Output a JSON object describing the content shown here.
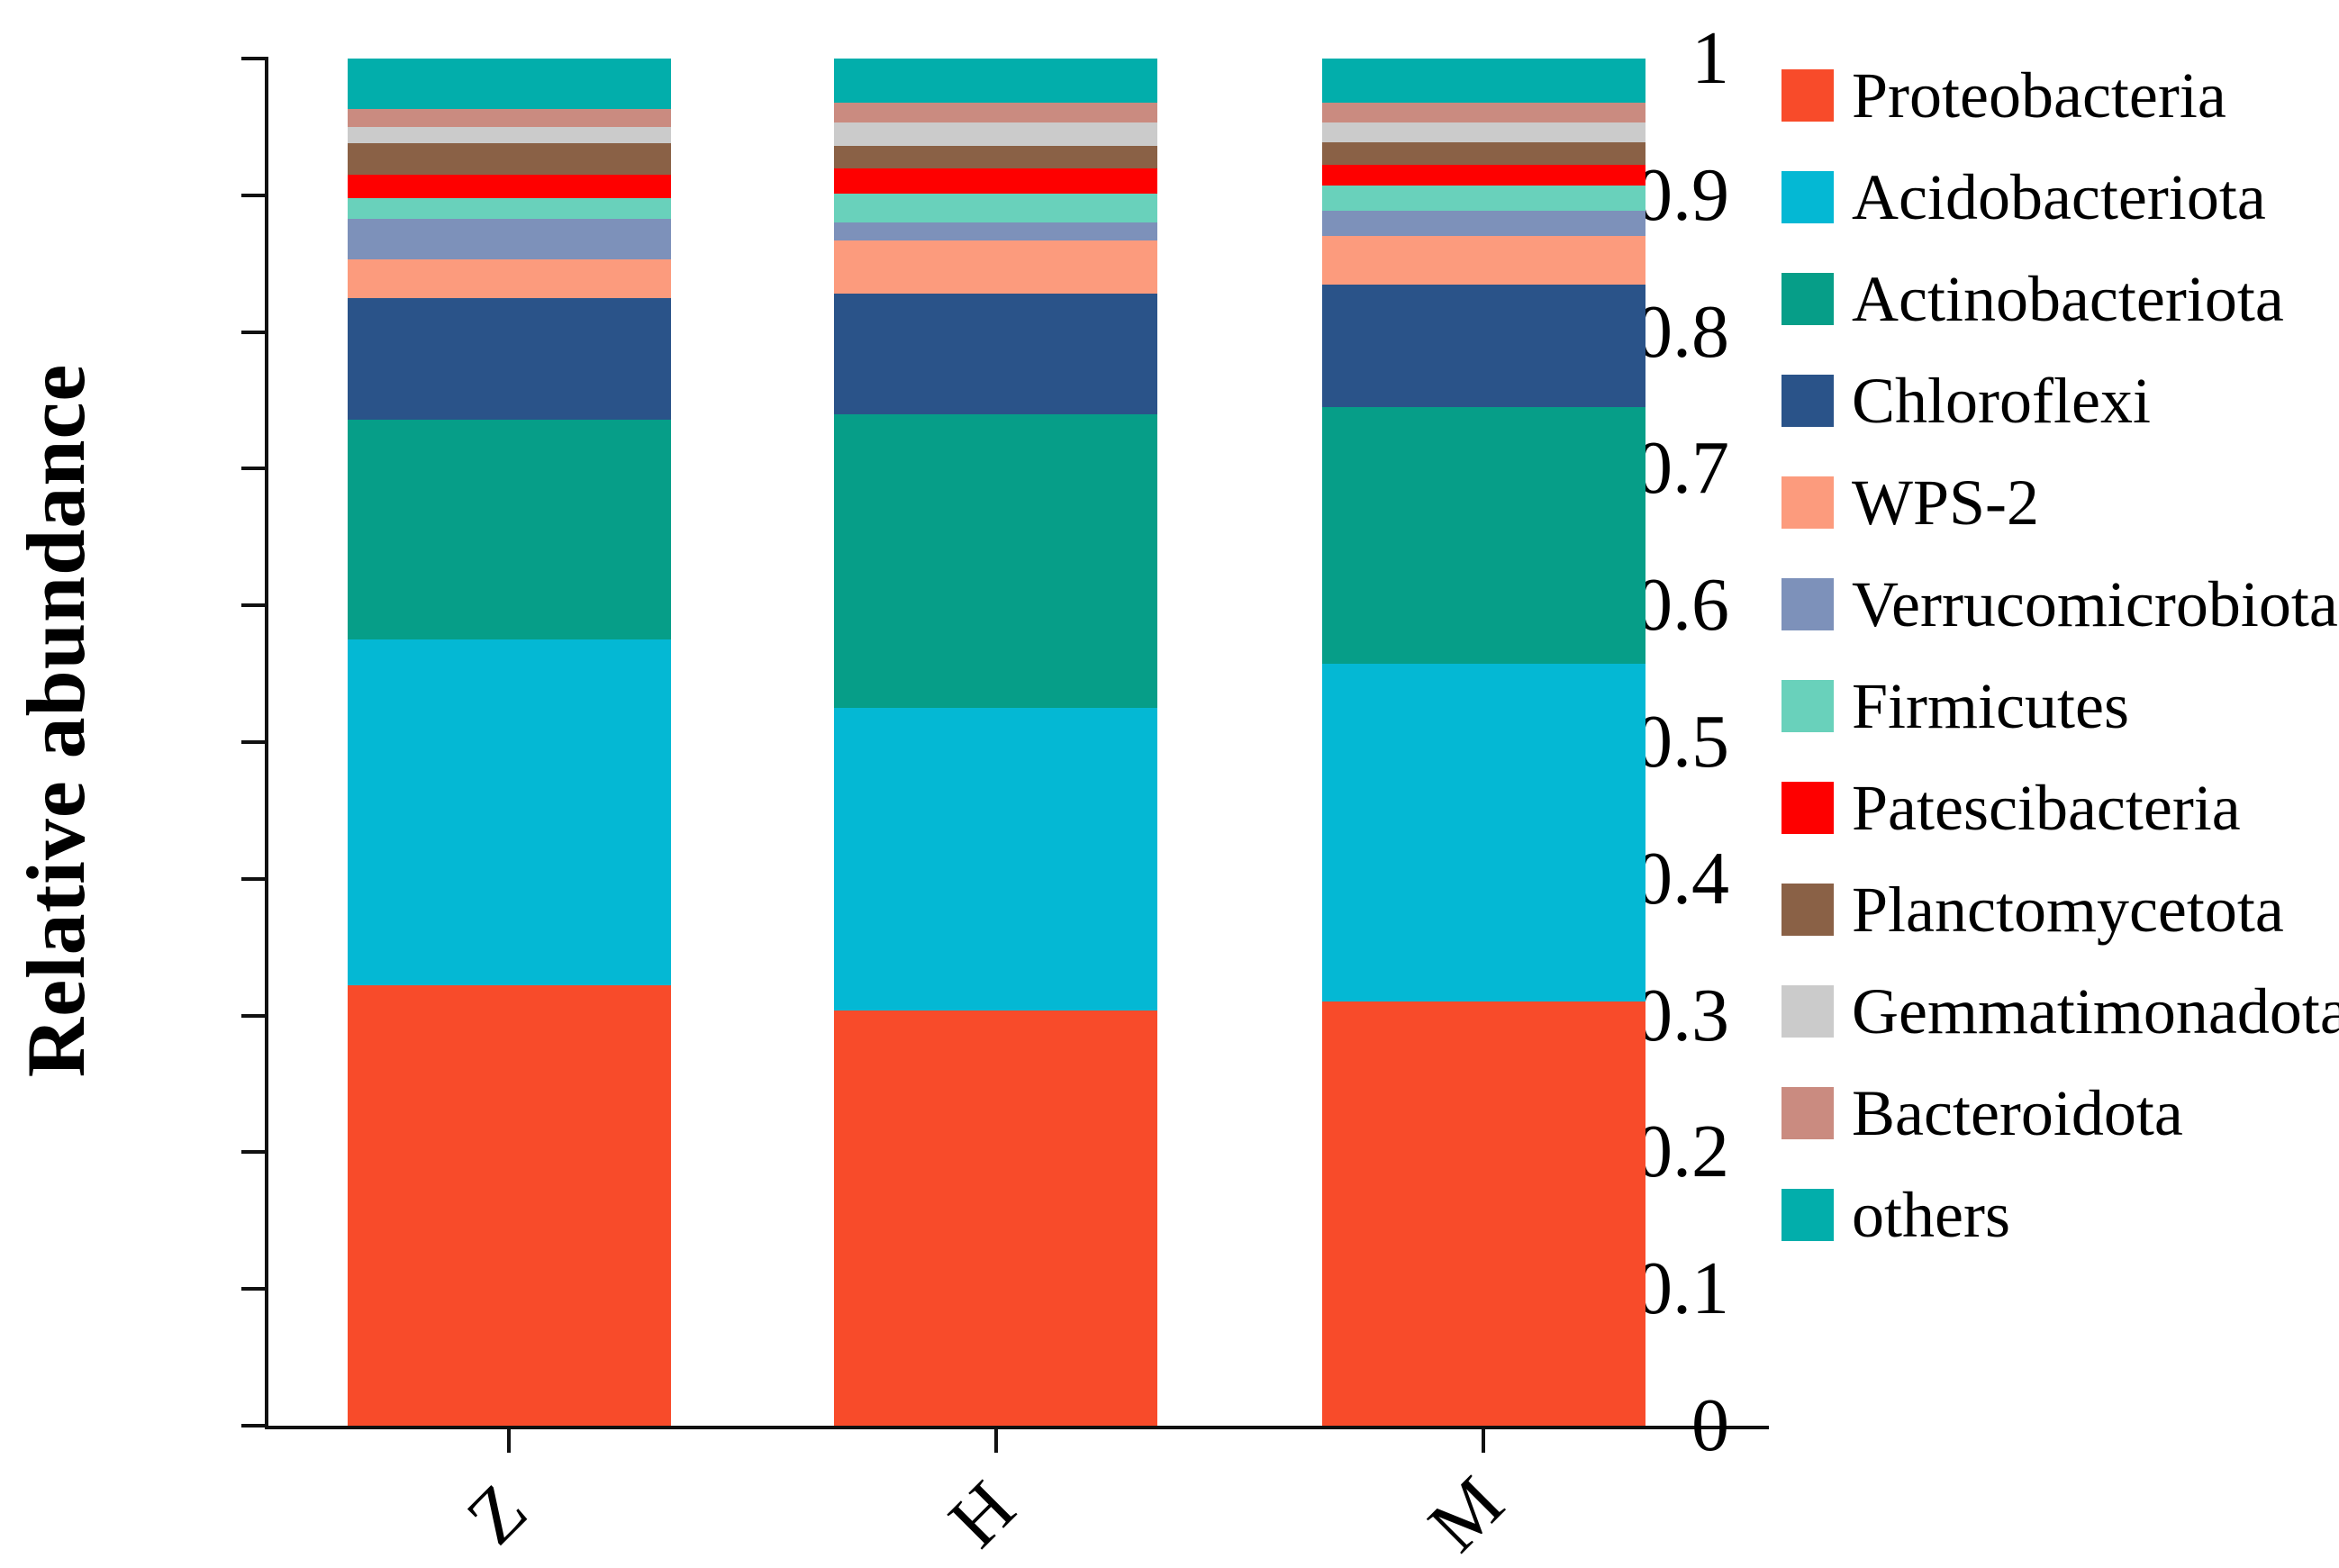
{
  "figure": {
    "background": "#FFFFFF",
    "axis_color": "#111111",
    "ylabel": "Relative abundance"
  },
  "chart_data": {
    "type": "bar",
    "stacked": true,
    "title": "",
    "xlabel": "",
    "ylabel": "Relative abundance",
    "categories": [
      "Z",
      "H",
      "M"
    ],
    "ylim": [
      0,
      1
    ],
    "yticks": [
      "1",
      "0.9",
      "0.8",
      "0.7",
      "0.6",
      "0.5",
      "0.4",
      "0.3",
      "0.2",
      "0.1",
      "0"
    ],
    "grid": false,
    "legend_position": "right",
    "bar_order_note": "series listed bottom-to-top of each stacked bar; legend reads top-to-bottom in same order",
    "series": [
      {
        "name": "Proteobacteria",
        "color": "#F84B2A",
        "values": [
          0.322,
          0.304,
          0.31
        ]
      },
      {
        "name": "Acidobacteriota",
        "color": "#04B8D4",
        "values": [
          0.253,
          0.221,
          0.247
        ]
      },
      {
        "name": "Actinobacteriota",
        "color": "#069E88",
        "values": [
          0.161,
          0.215,
          0.188
        ]
      },
      {
        "name": "Chloroflexi",
        "color": "#2A5389",
        "values": [
          0.089,
          0.088,
          0.09
        ]
      },
      {
        "name": "WPS-2",
        "color": "#FC9B7D",
        "values": [
          0.028,
          0.039,
          0.035
        ]
      },
      {
        "name": "Verrucomicrobiota",
        "color": "#7D91BA",
        "values": [
          0.03,
          0.013,
          0.019
        ]
      },
      {
        "name": "Firmicutes",
        "color": "#69D1BB",
        "values": [
          0.015,
          0.021,
          0.018
        ]
      },
      {
        "name": "Patescibacteria",
        "color": "#FE0000",
        "values": [
          0.017,
          0.019,
          0.015
        ]
      },
      {
        "name": "Planctomycetota",
        "color": "#8A6146",
        "values": [
          0.023,
          0.016,
          0.017
        ]
      },
      {
        "name": "Gemmatimonadota",
        "color": "#CBCBCB",
        "values": [
          0.012,
          0.017,
          0.014
        ]
      },
      {
        "name": "Bacteroidota",
        "color": "#CA8B80",
        "values": [
          0.013,
          0.015,
          0.015
        ]
      },
      {
        "name": "others",
        "color": "#02AEAB",
        "values": [
          0.037,
          0.032,
          0.032
        ]
      }
    ],
    "bar_geometry": {
      "bar_width_pct": 21.55,
      "bar_left_pct": [
        5.28,
        37.7,
        70.22
      ]
    }
  }
}
